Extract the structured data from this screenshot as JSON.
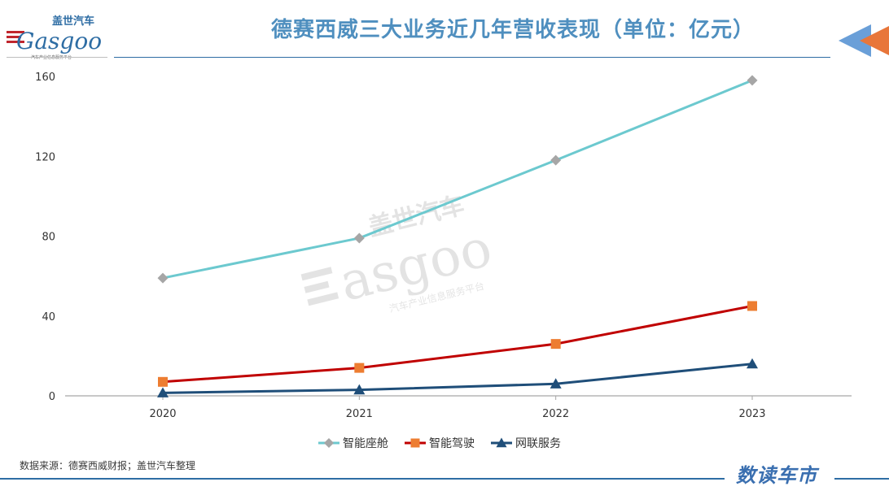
{
  "header": {
    "title": "德赛西威三大业务近几年营收表现（单位：亿元）",
    "logo_cn": "盖世汽车",
    "logo_en": "Gasgoo",
    "logo_tagline": "汽车产业信息服务平台"
  },
  "watermark": {
    "cn": "盖世汽车",
    "en": "asgoo",
    "tagline": "汽车产业信息服务平台"
  },
  "footer": {
    "source": "数据来源：德赛西威财报；盖世汽车整理",
    "brand": "数读车市"
  },
  "colors": {
    "accent": "#2e6da4",
    "title": "#4f8fbf",
    "corner_orange": "#e8763a",
    "corner_blue": "#6a9fd8"
  },
  "chart_data": {
    "type": "line",
    "title": "德赛西威三大业务近几年营收表现（单位：亿元）",
    "categories": [
      "2020",
      "2021",
      "2022",
      "2023"
    ],
    "ylim": [
      0,
      160
    ],
    "yticks": [
      0,
      40,
      80,
      120,
      160
    ],
    "grid": false,
    "legend_position": "bottom",
    "series": [
      {
        "name": "智能座舱",
        "values": [
          59,
          79,
          118,
          158
        ],
        "color": "#6cc9cf",
        "marker": "diamond",
        "marker_color": "#a6a6a6"
      },
      {
        "name": "智能驾驶",
        "values": [
          7,
          14,
          26,
          45
        ],
        "color": "#c00000",
        "marker": "square",
        "marker_color": "#ed7d31"
      },
      {
        "name": "网联服务",
        "values": [
          1.5,
          3,
          6,
          16
        ],
        "color": "#1f4e79",
        "marker": "triangle",
        "marker_color": "#1f4e79"
      }
    ]
  }
}
